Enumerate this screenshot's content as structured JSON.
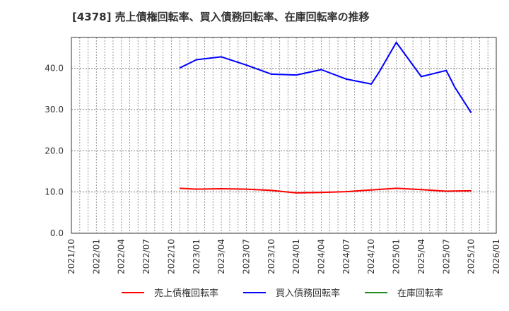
{
  "chart_data": {
    "type": "line",
    "title": "[4378]  売上債権回転率、買入債務回転率、在庫回転率の推移",
    "xlabel": "",
    "ylabel": "",
    "ylim": [
      0,
      47.5
    ],
    "yticks": [
      "0.0",
      "10.0",
      "20.0",
      "30.0",
      "40.0"
    ],
    "ytick_values": [
      0,
      10,
      20,
      30,
      40
    ],
    "xticks": [
      "2021/10",
      "2022/01",
      "2022/04",
      "2022/07",
      "2022/10",
      "2023/01",
      "2023/04",
      "2023/07",
      "2023/10",
      "2024/01",
      "2024/04",
      "2024/07",
      "2024/10",
      "2025/01",
      "2025/04",
      "2025/07",
      "2025/10",
      "2026/01"
    ],
    "xrange": [
      "2021/10",
      "2026/01"
    ],
    "grid": true,
    "legend_position": "bottom",
    "series": [
      {
        "name": "売上債権回転率",
        "color": "#ff0000",
        "points": [
          {
            "x": "2022/11",
            "y": 10.9
          },
          {
            "x": "2023/01",
            "y": 10.7
          },
          {
            "x": "2023/04",
            "y": 10.8
          },
          {
            "x": "2023/07",
            "y": 10.7
          },
          {
            "x": "2023/10",
            "y": 10.4
          },
          {
            "x": "2024/01",
            "y": 9.8
          },
          {
            "x": "2024/04",
            "y": 9.9
          },
          {
            "x": "2024/07",
            "y": 10.1
          },
          {
            "x": "2024/10",
            "y": 10.5
          },
          {
            "x": "2025/01",
            "y": 10.9
          },
          {
            "x": "2025/04",
            "y": 10.6
          },
          {
            "x": "2025/07",
            "y": 10.2
          },
          {
            "x": "2025/10",
            "y": 10.3
          }
        ]
      },
      {
        "name": "買入債務回転率",
        "color": "#0000ff",
        "points": [
          {
            "x": "2022/11",
            "y": 40.1
          },
          {
            "x": "2023/01",
            "y": 42.1
          },
          {
            "x": "2023/04",
            "y": 42.8
          },
          {
            "x": "2023/07",
            "y": 40.8
          },
          {
            "x": "2023/10",
            "y": 38.6
          },
          {
            "x": "2024/01",
            "y": 38.4
          },
          {
            "x": "2024/04",
            "y": 39.7
          },
          {
            "x": "2024/07",
            "y": 37.4
          },
          {
            "x": "2024/10",
            "y": 36.2
          },
          {
            "x": "2024/11",
            "y": 39.3
          },
          {
            "x": "2024/12",
            "y": 42.8
          },
          {
            "x": "2025/01",
            "y": 46.3
          },
          {
            "x": "2025/04",
            "y": 38.0
          },
          {
            "x": "2025/07",
            "y": 39.5
          },
          {
            "x": "2025/08",
            "y": 35.5
          },
          {
            "x": "2025/10",
            "y": 29.2
          }
        ]
      },
      {
        "name": "在庫回転率",
        "color": "#228b22",
        "points": []
      }
    ]
  },
  "legend": {
    "items": [
      {
        "label": "売上債権回転率",
        "color": "#ff0000"
      },
      {
        "label": "買入債務回転率",
        "color": "#0000ff"
      },
      {
        "label": "在庫回転率",
        "color": "#228b22"
      }
    ]
  }
}
